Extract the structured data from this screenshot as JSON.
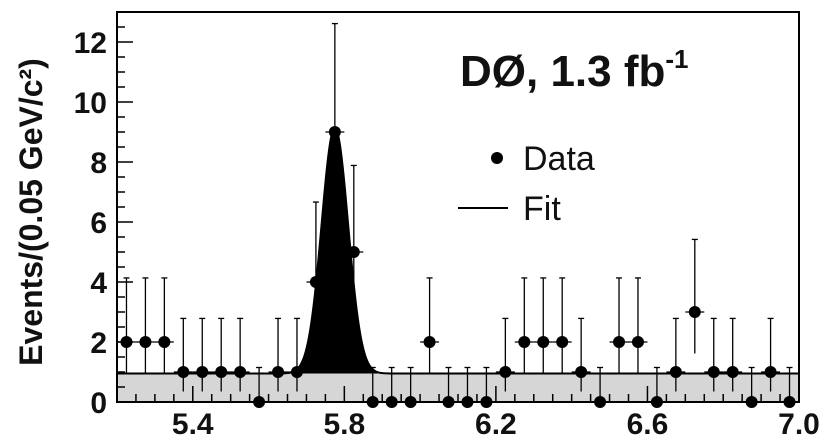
{
  "chart_data": {
    "type": "scatter",
    "annotation": {
      "label": "DØ, 1.3 fb",
      "superscript": "-1"
    },
    "ylabel": "Events/(0.05 GeV/c²)",
    "xlabel": "",
    "xlim": [
      5.2,
      7.0
    ],
    "ylim": [
      0,
      13
    ],
    "x_ticks": [
      "5.4",
      "5.8",
      "6.2",
      "6.6",
      "7.0"
    ],
    "y_ticks": [
      "0",
      "2",
      "4",
      "6",
      "8",
      "10",
      "12"
    ],
    "legend": {
      "placement": "top-right",
      "items": [
        {
          "marker": "point",
          "label": "Data"
        },
        {
          "marker": "line",
          "label": "Fit"
        }
      ]
    },
    "series": [
      {
        "name": "Data",
        "points": [
          {
            "x": 5.225,
            "y": 2
          },
          {
            "x": 5.275,
            "y": 2
          },
          {
            "x": 5.325,
            "y": 2
          },
          {
            "x": 5.375,
            "y": 1
          },
          {
            "x": 5.425,
            "y": 1
          },
          {
            "x": 5.475,
            "y": 1
          },
          {
            "x": 5.525,
            "y": 1
          },
          {
            "x": 5.575,
            "y": 0
          },
          {
            "x": 5.625,
            "y": 1
          },
          {
            "x": 5.675,
            "y": 1
          },
          {
            "x": 5.725,
            "y": 4
          },
          {
            "x": 5.775,
            "y": 9
          },
          {
            "x": 5.825,
            "y": 5
          },
          {
            "x": 5.875,
            "y": 0
          },
          {
            "x": 5.925,
            "y": 0
          },
          {
            "x": 5.975,
            "y": 0
          },
          {
            "x": 6.025,
            "y": 2
          },
          {
            "x": 6.075,
            "y": 0
          },
          {
            "x": 6.125,
            "y": 0
          },
          {
            "x": 6.175,
            "y": 0
          },
          {
            "x": 6.225,
            "y": 1
          },
          {
            "x": 6.275,
            "y": 2
          },
          {
            "x": 6.325,
            "y": 2
          },
          {
            "x": 6.375,
            "y": 2
          },
          {
            "x": 6.425,
            "y": 1
          },
          {
            "x": 6.475,
            "y": 0
          },
          {
            "x": 6.525,
            "y": 2
          },
          {
            "x": 6.575,
            "y": 2
          },
          {
            "x": 6.625,
            "y": 0
          },
          {
            "x": 6.675,
            "y": 1
          },
          {
            "x": 6.725,
            "y": 3
          },
          {
            "x": 6.775,
            "y": 1
          },
          {
            "x": 6.825,
            "y": 1
          },
          {
            "x": 6.875,
            "y": 0
          },
          {
            "x": 6.925,
            "y": 1
          },
          {
            "x": 6.975,
            "y": 0
          }
        ]
      },
      {
        "name": "Fit",
        "background": 0.95,
        "peak": {
          "mean": 5.775,
          "sigma": 0.035,
          "amplitude": 8.2
        }
      }
    ],
    "colors": {
      "signal": "#000000",
      "background": "#d6d6d6",
      "markers": "#000000"
    }
  }
}
